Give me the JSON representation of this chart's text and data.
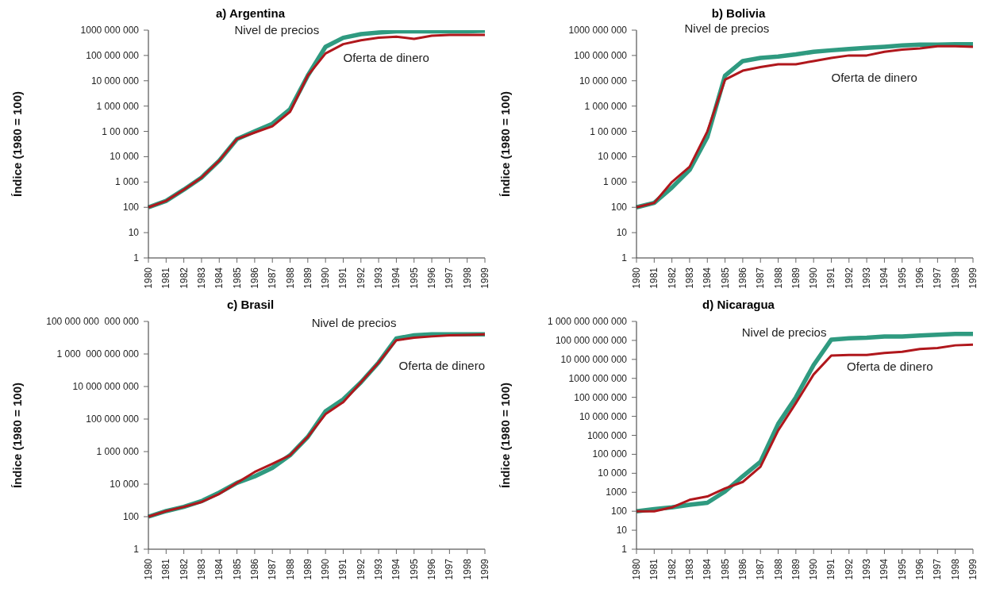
{
  "chart_data": [
    {
      "type": "line",
      "title": "a) Argentina",
      "ylabel": "Índice (1980 = 100)",
      "log": true,
      "marker": "none",
      "categories": [
        "1980",
        "1981",
        "1982",
        "1983",
        "1984",
        "1985",
        "1986",
        "1987",
        "1988",
        "1989",
        "1990",
        "1991",
        "1992",
        "1993",
        "1994",
        "1995",
        "1996",
        "1997",
        "1998",
        "1999"
      ],
      "ylim": [
        1,
        1000000000
      ],
      "yticks": [
        {
          "value": 1,
          "label": "1"
        },
        {
          "value": 10,
          "label": "10"
        },
        {
          "value": 100,
          "label": "100"
        },
        {
          "value": 1000,
          "label": "1 000"
        },
        {
          "value": 10000,
          "label": "10 000"
        },
        {
          "value": 100000,
          "label": "1 00 000"
        },
        {
          "value": 1000000,
          "label": "1 000 000"
        },
        {
          "value": 10000000,
          "label": "10 000 000"
        },
        {
          "value": 100000000,
          "label": "100 000 000"
        },
        {
          "value": 1000000000,
          "label": "1000 000 000"
        }
      ],
      "series": [
        {
          "name": "Nivel de precios",
          "color": "#2f9a80",
          "values": [
            100,
            180,
            500,
            1500,
            7000,
            50000,
            100000,
            200000,
            750000,
            16000000,
            220000000,
            500000000,
            700000000,
            800000000,
            900000000,
            900000000,
            900000000,
            900000000,
            900000000,
            950000000
          ]
        },
        {
          "name": "Oferta de dinero",
          "color": "#b0171c",
          "values": [
            100,
            180,
            500,
            1500,
            7000,
            50000,
            90000,
            160000,
            600000,
            16000000,
            120000000,
            280000000,
            400000000,
            500000000,
            550000000,
            450000000,
            600000000,
            650000000,
            650000000,
            650000000
          ]
        }
      ]
    },
    {
      "type": "line",
      "title": "b) Bolivia",
      "ylabel": "Índice (1980 = 100)",
      "log": true,
      "marker": "none",
      "categories": [
        "1980",
        "1981",
        "1982",
        "1983",
        "1984",
        "1985",
        "1986",
        "1987",
        "1988",
        "1989",
        "1990",
        "1991",
        "1992",
        "1993",
        "1994",
        "1995",
        "1996",
        "1997",
        "1998",
        "1999"
      ],
      "ylim": [
        1,
        1000000000
      ],
      "yticks": [
        {
          "value": 1,
          "label": "1"
        },
        {
          "value": 10,
          "label": "10"
        },
        {
          "value": 100,
          "label": "100"
        },
        {
          "value": 1000,
          "label": "1 000"
        },
        {
          "value": 10000,
          "label": "10 000"
        },
        {
          "value": 100000,
          "label": "1 00 000"
        },
        {
          "value": 1000000,
          "label": "1 000 000"
        },
        {
          "value": 10000000,
          "label": "10 000 000"
        },
        {
          "value": 100000000,
          "label": "100 000 000"
        },
        {
          "value": 1000000000,
          "label": "1000 000 000"
        }
      ],
      "series": [
        {
          "name": "Nivel de precios",
          "color": "#2f9a80",
          "values": [
            100,
            150,
            600,
            3000,
            60000,
            16000000,
            60000000,
            80000000,
            90000000,
            110000000,
            140000000,
            160000000,
            180000000,
            200000000,
            220000000,
            250000000,
            270000000,
            270000000,
            280000000,
            280000000
          ]
        },
        {
          "name": "Oferta de dinero",
          "color": "#b0171c",
          "values": [
            100,
            150,
            1000,
            4000,
            100000,
            11000000,
            25000000,
            35000000,
            45000000,
            45000000,
            60000000,
            80000000,
            100000000,
            100000000,
            140000000,
            170000000,
            190000000,
            230000000,
            230000000,
            220000000
          ]
        }
      ]
    },
    {
      "type": "line",
      "title": "c) Brasil",
      "ylabel": "Índice (1980 = 100)",
      "log": true,
      "marker": "none",
      "categories": [
        "1980",
        "1981",
        "1982",
        "1983",
        "1984",
        "1985",
        "1986",
        "1987",
        "1988",
        "1989",
        "1990",
        "1991",
        "1992",
        "1993",
        "1994",
        "1995",
        "1996",
        "1997",
        "1998",
        "1999"
      ],
      "ylim": [
        1,
        100000000000000
      ],
      "yticks": [
        {
          "value": 1,
          "label": "1"
        },
        {
          "value": 100,
          "label": "100"
        },
        {
          "value": 10000,
          "label": "10 000"
        },
        {
          "value": 1000000,
          "label": "1 000 000"
        },
        {
          "value": 100000000,
          "label": "100 000 000"
        },
        {
          "value": 10000000000,
          "label": "10 000 000 000"
        },
        {
          "value": 1000000000000,
          "label": "1 000  000 000 000"
        },
        {
          "value": 100000000000000,
          "label": "100 000 000  000 000"
        }
      ],
      "series": [
        {
          "name": "Nivel de precios",
          "color": "#2f9a80",
          "values": [
            100,
            220,
            400,
            900,
            3000,
            12000,
            30000,
            100000,
            600000,
            8000000,
            300000000,
            1600000000,
            18000000000,
            300000000000,
            9000000000000,
            14000000000000,
            16000000000000,
            16000000000000,
            16000000000000,
            16000000000000
          ]
        },
        {
          "name": "Oferta de dinero",
          "color": "#b0171c",
          "values": [
            100,
            220,
            400,
            800,
            2500,
            12000,
            56000,
            180000,
            600000,
            8000000,
            200000000,
            1100000000,
            18000000000,
            300000000000,
            7000000000000,
            10000000000000,
            12000000000000,
            14000000000000,
            15000000000000,
            16000000000000
          ]
        }
      ]
    },
    {
      "type": "line",
      "title": "d) Nicaragua",
      "ylabel": "Índice (1980 = 100)",
      "log": true,
      "marker": "none",
      "categories": [
        "1980",
        "1981",
        "1982",
        "1983",
        "1984",
        "1985",
        "1986",
        "1987",
        "1988",
        "1989",
        "1990",
        "1991",
        "1992",
        "1993",
        "1994",
        "1995",
        "1996",
        "1997",
        "1998",
        "1999"
      ],
      "ylim": [
        1,
        1000000000000
      ],
      "yticks": [
        {
          "value": 1,
          "label": "1"
        },
        {
          "value": 10,
          "label": "10"
        },
        {
          "value": 100,
          "label": "100"
        },
        {
          "value": 1000,
          "label": "1000"
        },
        {
          "value": 10000,
          "label": "10 000"
        },
        {
          "value": 100000,
          "label": "100 000"
        },
        {
          "value": 1000000,
          "label": "1000 000"
        },
        {
          "value": 10000000,
          "label": "10 000 000"
        },
        {
          "value": 100000000,
          "label": "100 000 000"
        },
        {
          "value": 1000000000,
          "label": "1000 000 000"
        },
        {
          "value": 10000000000,
          "label": "10 000 000 000"
        },
        {
          "value": 100000000000,
          "label": "100 000 000 000"
        },
        {
          "value": 1000000000000,
          "label": "1 000 000 000 000"
        }
      ],
      "series": [
        {
          "name": "Nivel de precios",
          "color": "#2f9a80",
          "values": [
            100,
            130,
            160,
            220,
            280,
            1100,
            7000,
            40000,
            4000000,
            100000000,
            5000000000,
            110000000000,
            130000000000,
            140000000000,
            160000000000,
            160000000000,
            180000000000,
            200000000000,
            220000000000,
            220000000000
          ]
        },
        {
          "name": "Oferta de dinero",
          "color": "#b0171c",
          "values": [
            100,
            100,
            160,
            400,
            600,
            1600,
            3500,
            22000,
            1800000,
            50000000,
            1600000000,
            16000000000,
            17000000000,
            17000000000,
            22000000000,
            25000000000,
            35000000000,
            40000000000,
            55000000000,
            60000000000
          ]
        }
      ]
    }
  ]
}
